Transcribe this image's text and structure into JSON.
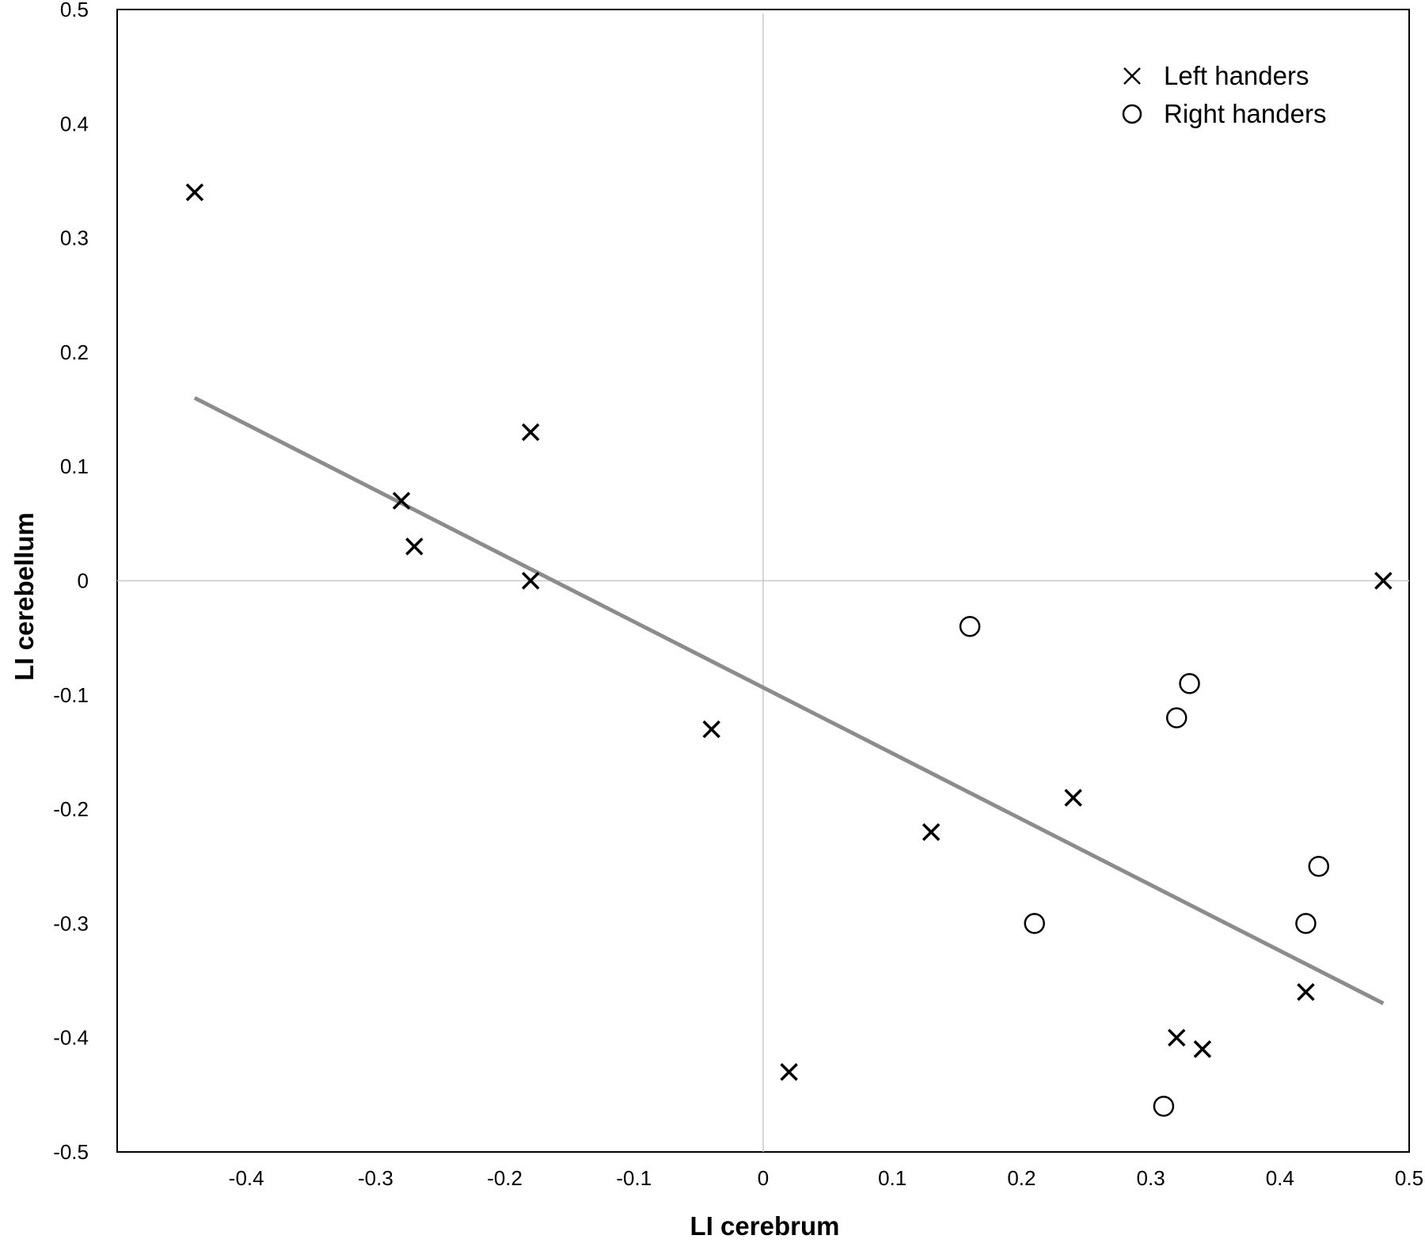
{
  "chart_data": {
    "type": "scatter",
    "title": "",
    "xlabel": "LI cerebrum",
    "ylabel": "LI cerebellum",
    "xlim": [
      -0.5,
      0.5
    ],
    "ylim": [
      -0.5,
      0.5
    ],
    "x_ticks": [
      "-0.4",
      "-0.3",
      "-0.2",
      "-0.1",
      "0",
      "0.1",
      "0.2",
      "0.3",
      "0.4",
      "0.5"
    ],
    "x_tick_values": [
      -0.4,
      -0.3,
      -0.2,
      -0.1,
      0,
      0.1,
      0.2,
      0.3,
      0.4,
      0.5
    ],
    "y_ticks": [
      "0.5",
      "0.4",
      "0.3",
      "0.2",
      "0.1",
      "0",
      "-0.1",
      "-0.2",
      "-0.3",
      "-0.4",
      "-0.5"
    ],
    "y_tick_values": [
      0.5,
      0.4,
      0.3,
      0.2,
      0.1,
      0,
      -0.1,
      -0.2,
      -0.3,
      -0.4,
      -0.5
    ],
    "grid": "zero lines only",
    "legend_position": "top-right",
    "series": [
      {
        "name": "Left handers",
        "marker": "x",
        "color": "#000000",
        "points": [
          {
            "x": -0.44,
            "y": 0.34
          },
          {
            "x": -0.28,
            "y": 0.07
          },
          {
            "x": -0.27,
            "y": 0.03
          },
          {
            "x": -0.18,
            "y": 0.13
          },
          {
            "x": -0.18,
            "y": 0.0
          },
          {
            "x": -0.04,
            "y": -0.13
          },
          {
            "x": 0.02,
            "y": -0.43
          },
          {
            "x": 0.13,
            "y": -0.22
          },
          {
            "x": 0.24,
            "y": -0.19
          },
          {
            "x": 0.32,
            "y": -0.4
          },
          {
            "x": 0.34,
            "y": -0.41
          },
          {
            "x": 0.42,
            "y": -0.36
          },
          {
            "x": 0.48,
            "y": 0.0
          }
        ]
      },
      {
        "name": "Right handers",
        "marker": "circle",
        "color": "#000000",
        "points": [
          {
            "x": 0.16,
            "y": -0.04
          },
          {
            "x": 0.33,
            "y": -0.09
          },
          {
            "x": 0.32,
            "y": -0.12
          },
          {
            "x": 0.43,
            "y": -0.25
          },
          {
            "x": 0.21,
            "y": -0.3
          },
          {
            "x": 0.42,
            "y": -0.3
          },
          {
            "x": 0.31,
            "y": -0.46
          }
        ]
      }
    ],
    "trendline": {
      "color": "#8c8c8c",
      "x": [
        -0.44,
        0.48
      ],
      "y": [
        0.16,
        -0.37
      ]
    }
  }
}
